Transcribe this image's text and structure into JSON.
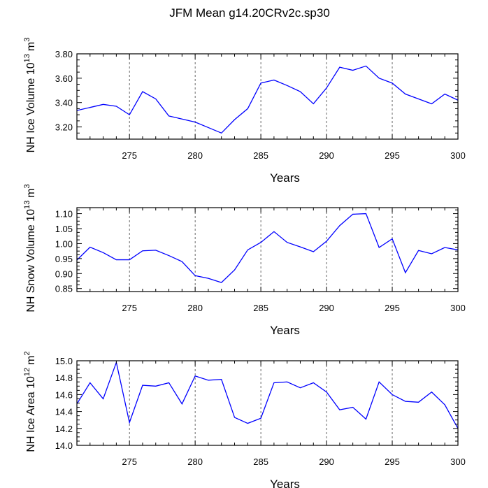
{
  "title": "JFM Mean g14.20CRv2c.sp30",
  "chart_data": [
    {
      "type": "line",
      "name": "ice-volume",
      "ylabel": {
        "text": "NH Ice Volume",
        "unit_base": "10",
        "unit_exp": "13",
        "unit_tail": "m",
        "unit_tail_exp": "3"
      },
      "xlabel": "Years",
      "xlim": [
        271,
        300
      ],
      "ylim": [
        3.1,
        3.8
      ],
      "xticks": [
        275,
        280,
        285,
        290,
        295,
        300
      ],
      "xtick_labels": [
        "275",
        "280",
        "285",
        "290",
        "295",
        "300"
      ],
      "yticks": [
        3.2,
        3.4,
        3.6,
        3.8
      ],
      "ytick_labels": [
        "3.20",
        "3.40",
        "3.60",
        "3.80"
      ],
      "grid": "x-dashed",
      "line_color": "#0000ff",
      "x": [
        271,
        272,
        273,
        274,
        275,
        276,
        277,
        278,
        279,
        280,
        281,
        282,
        283,
        284,
        285,
        286,
        287,
        288,
        289,
        290,
        291,
        292,
        293,
        294,
        295,
        296,
        297,
        298,
        299,
        300
      ],
      "values": [
        3.335,
        3.36,
        3.385,
        3.37,
        3.3,
        3.49,
        3.43,
        3.29,
        3.265,
        3.24,
        3.195,
        3.15,
        3.26,
        3.35,
        3.56,
        3.585,
        3.54,
        3.49,
        3.39,
        3.52,
        3.69,
        3.665,
        3.7,
        3.6,
        3.56,
        3.47,
        3.43,
        3.39,
        3.47,
        3.42
      ]
    },
    {
      "type": "line",
      "name": "snow-volume",
      "ylabel": {
        "text": "NH Snow Volume",
        "unit_base": "10",
        "unit_exp": "13",
        "unit_tail": "m",
        "unit_tail_exp": "3"
      },
      "xlabel": "Years",
      "xlim": [
        271,
        300
      ],
      "ylim": [
        0.84,
        1.12
      ],
      "xticks": [
        275,
        280,
        285,
        290,
        295,
        300
      ],
      "xtick_labels": [
        "275",
        "280",
        "285",
        "290",
        "295",
        "300"
      ],
      "yticks": [
        0.85,
        0.9,
        0.95,
        1.0,
        1.05,
        1.1
      ],
      "ytick_labels": [
        "0.85",
        "0.90",
        "0.95",
        "1.00",
        "1.05",
        "1.10"
      ],
      "grid": "x-dashed",
      "line_color": "#0000ff",
      "x": [
        271,
        272,
        273,
        274,
        275,
        276,
        277,
        278,
        279,
        280,
        281,
        282,
        283,
        284,
        285,
        286,
        287,
        288,
        289,
        290,
        291,
        292,
        293,
        294,
        295,
        296,
        297,
        298,
        299,
        300
      ],
      "values": [
        0.945,
        0.988,
        0.97,
        0.946,
        0.946,
        0.976,
        0.978,
        0.96,
        0.94,
        0.893,
        0.884,
        0.87,
        0.912,
        0.979,
        1.004,
        1.04,
        1.004,
        0.989,
        0.973,
        1.008,
        1.06,
        1.098,
        1.1,
        0.987,
        1.016,
        0.903,
        0.977,
        0.966,
        0.987,
        0.979
      ]
    },
    {
      "type": "line",
      "name": "ice-area",
      "ylabel": {
        "text": "NH Ice Area",
        "unit_base": "10",
        "unit_exp": "12",
        "unit_tail": "m",
        "unit_tail_exp": "2"
      },
      "xlabel": "Years",
      "xlim": [
        271,
        300
      ],
      "ylim": [
        14.0,
        15.0
      ],
      "xticks": [
        275,
        280,
        285,
        290,
        295,
        300
      ],
      "xtick_labels": [
        "275",
        "280",
        "285",
        "290",
        "295",
        "300"
      ],
      "yticks": [
        14.0,
        14.2,
        14.4,
        14.6,
        14.8,
        15.0
      ],
      "ytick_labels": [
        "14.0",
        "14.2",
        "14.4",
        "14.6",
        "14.8",
        "15.0"
      ],
      "grid": "x-dashed",
      "line_color": "#0000ff",
      "x": [
        271,
        272,
        273,
        274,
        275,
        276,
        277,
        278,
        279,
        280,
        281,
        282,
        283,
        284,
        285,
        286,
        287,
        288,
        289,
        290,
        291,
        292,
        293,
        294,
        295,
        296,
        297,
        298,
        299,
        300
      ],
      "values": [
        14.49,
        14.74,
        14.55,
        14.98,
        14.27,
        14.71,
        14.7,
        14.74,
        14.49,
        14.82,
        14.77,
        14.78,
        14.33,
        14.26,
        14.32,
        14.74,
        14.75,
        14.68,
        14.74,
        14.63,
        14.42,
        14.45,
        14.31,
        14.75,
        14.6,
        14.52,
        14.51,
        14.63,
        14.48,
        14.2
      ]
    }
  ]
}
